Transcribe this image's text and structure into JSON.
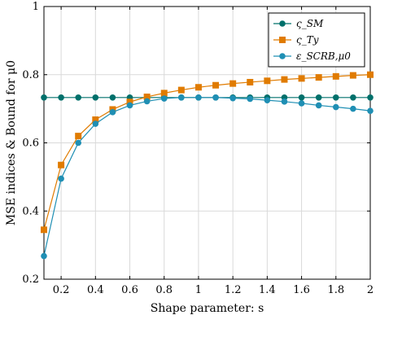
{
  "chart_data": {
    "type": "line",
    "xlabel": "Shape parameter: s",
    "ylabel": "MSE indices & Bound for μ0",
    "xlim": [
      0.1,
      2.0
    ],
    "ylim": [
      0.2,
      1.0
    ],
    "xticks": [
      0.2,
      0.4,
      0.6,
      0.8,
      1,
      1.2,
      1.4,
      1.6,
      1.8,
      2
    ],
    "xtick_labels": [
      "0.2",
      "0.4",
      "0.6",
      "0.8",
      "1",
      "1.2",
      "1.4",
      "1.6",
      "1.8",
      "2"
    ],
    "yticks": [
      0.2,
      0.4,
      0.6,
      0.8,
      1.0
    ],
    "ytick_labels": [
      "0.2",
      "0.4",
      "0.6",
      "0.8",
      "1"
    ],
    "grid": true,
    "legend_position": "top-right",
    "x": [
      0.1,
      0.2,
      0.3,
      0.4,
      0.5,
      0.6,
      0.7,
      0.8,
      0.9,
      1.0,
      1.1,
      1.2,
      1.3,
      1.4,
      1.5,
      1.6,
      1.7,
      1.8,
      1.9,
      2.0
    ],
    "series": [
      {
        "name": "ς_SM",
        "color": "#00706b",
        "marker": "circle",
        "values": [
          0.733,
          0.733,
          0.733,
          0.733,
          0.733,
          0.733,
          0.733,
          0.733,
          0.733,
          0.733,
          0.733,
          0.733,
          0.733,
          0.733,
          0.733,
          0.733,
          0.733,
          0.733,
          0.733,
          0.733
        ]
      },
      {
        "name": "ς_Ty",
        "color": "#e07b00",
        "marker": "square",
        "values": [
          0.345,
          0.535,
          0.62,
          0.668,
          0.698,
          0.72,
          0.735,
          0.746,
          0.755,
          0.763,
          0.769,
          0.774,
          0.778,
          0.782,
          0.786,
          0.789,
          0.792,
          0.795,
          0.798,
          0.8
        ]
      },
      {
        "name": "ε_SCRB,μ0",
        "color": "#1f8fb4",
        "marker": "circle",
        "values": [
          0.268,
          0.495,
          0.6,
          0.656,
          0.69,
          0.71,
          0.722,
          0.73,
          0.733,
          0.733,
          0.733,
          0.731,
          0.729,
          0.725,
          0.721,
          0.716,
          0.71,
          0.705,
          0.7,
          0.694
        ]
      }
    ]
  }
}
